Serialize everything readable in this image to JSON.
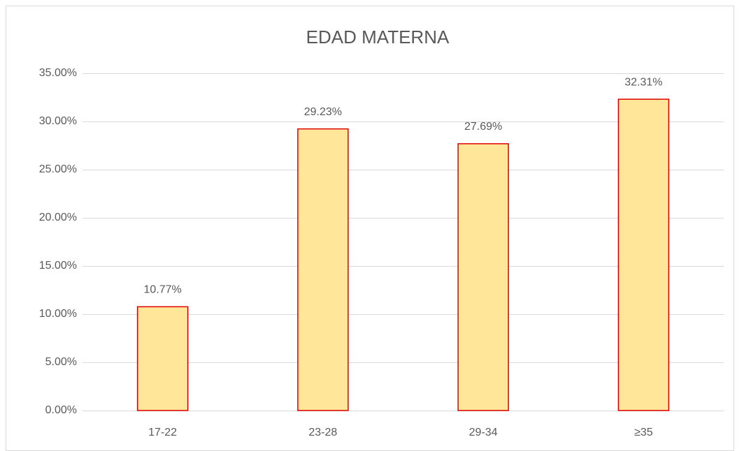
{
  "chart_data": {
    "type": "bar",
    "title": "EDAD MATERNA",
    "categories": [
      "17-22",
      "23-28",
      "29-34",
      "≥35"
    ],
    "values": [
      10.77,
      29.23,
      27.69,
      32.31
    ],
    "value_labels": [
      "10.77%",
      "29.23%",
      "27.69%",
      "32.31%"
    ],
    "color": "#ffe699",
    "edge_color": "#e00000",
    "ylim": [
      0,
      35
    ],
    "yticks": [
      {
        "value": 0,
        "label": "0.00%"
      },
      {
        "value": 5,
        "label": "5.00%"
      },
      {
        "value": 10,
        "label": "10.00%"
      },
      {
        "value": 15,
        "label": "15.00%"
      },
      {
        "value": 20,
        "label": "20.00%"
      },
      {
        "value": 25,
        "label": "25.00%"
      },
      {
        "value": 30,
        "label": "30.00%"
      },
      {
        "value": 35,
        "label": "35.00%"
      }
    ],
    "grid": true
  }
}
